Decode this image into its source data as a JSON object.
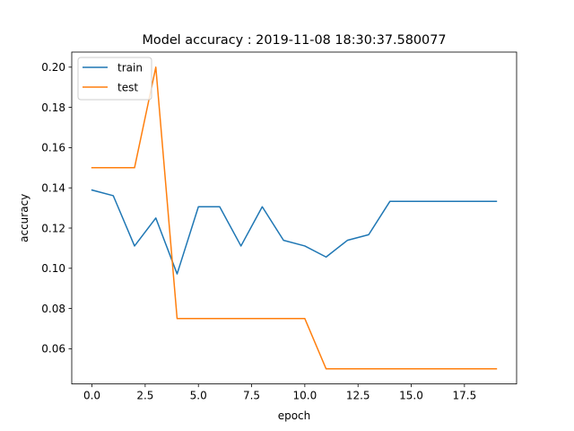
{
  "chart_data": {
    "type": "line",
    "title": "Model accuracy : 2019-11-08 18:30:37.580077",
    "xlabel": "epoch",
    "ylabel": "accuracy",
    "xlim": [
      -0.95,
      19.95
    ],
    "ylim": [
      0.0425,
      0.2075
    ],
    "xticks": [
      0.0,
      2.5,
      5.0,
      7.5,
      10.0,
      12.5,
      15.0,
      17.5
    ],
    "xtick_labels": [
      "0.0",
      "2.5",
      "5.0",
      "7.5",
      "10.0",
      "12.5",
      "15.0",
      "17.5"
    ],
    "yticks": [
      0.06,
      0.08,
      0.1,
      0.12,
      0.14,
      0.16,
      0.18,
      0.2
    ],
    "ytick_labels": [
      "0.06",
      "0.08",
      "0.10",
      "0.12",
      "0.14",
      "0.16",
      "0.18",
      "0.20"
    ],
    "grid": false,
    "legend_position": "top-left",
    "x": [
      0,
      1,
      2,
      3,
      4,
      5,
      6,
      7,
      8,
      9,
      10,
      11,
      12,
      13,
      14,
      15,
      16,
      17,
      18,
      19
    ],
    "series": [
      {
        "name": "train",
        "color": "#1f77b4",
        "values": [
          0.1389,
          0.1361,
          0.1111,
          0.125,
          0.0972,
          0.1306,
          0.1306,
          0.1111,
          0.1306,
          0.1139,
          0.1111,
          0.1056,
          0.1139,
          0.1167,
          0.1333,
          0.1333,
          0.1333,
          0.1333,
          0.1333,
          0.1333
        ]
      },
      {
        "name": "test",
        "color": "#ff7f0e",
        "values": [
          0.15,
          0.15,
          0.15,
          0.2,
          0.075,
          0.075,
          0.075,
          0.075,
          0.075,
          0.075,
          0.075,
          0.05,
          0.05,
          0.05,
          0.05,
          0.05,
          0.05,
          0.05,
          0.05,
          0.05
        ]
      }
    ]
  }
}
